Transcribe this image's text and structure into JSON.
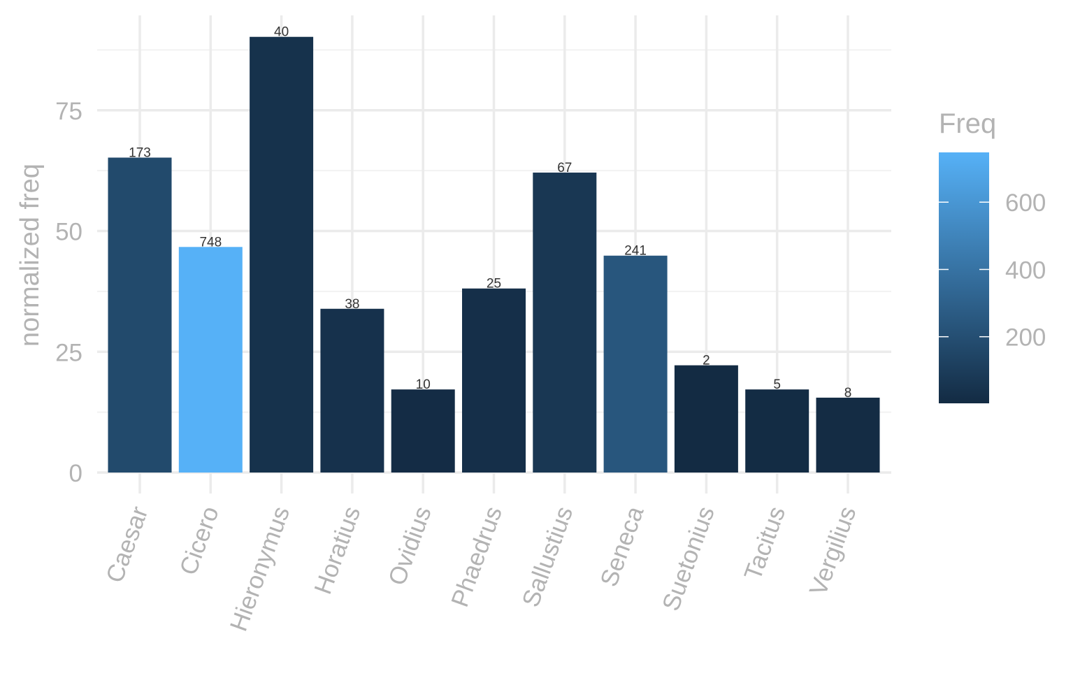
{
  "chart_data": {
    "type": "bar",
    "title": "",
    "xlabel": "",
    "ylabel": "normalized freq",
    "ylim": [
      0,
      90
    ],
    "yticks": [
      0,
      25,
      50,
      75
    ],
    "grid": true,
    "legend_position": "right",
    "categories": [
      "Caesar",
      "Cicero",
      "Hieronymus",
      "Horatius",
      "Ovidius",
      "Phaedrus",
      "Sallustius",
      "Seneca",
      "Suetonius",
      "Tacitus",
      "Vergilius"
    ],
    "values": [
      65.2,
      46.7,
      90.2,
      33.9,
      17.2,
      38.1,
      62.1,
      44.9,
      22.2,
      17.2,
      15.5
    ],
    "freq": [
      173,
      748,
      40,
      38,
      10,
      25,
      67,
      241,
      2,
      5,
      8
    ],
    "data_labels": [
      "173",
      "748",
      "40",
      "38",
      "10",
      "25",
      "67",
      "241",
      "2",
      "5",
      "8"
    ],
    "legend": {
      "title": "Freq",
      "min": 2,
      "max": 748,
      "ticks": [
        200,
        400,
        600
      ],
      "tick_labels": [
        "200",
        "400",
        "600"
      ],
      "color_low": "#132B43",
      "color_high": "#56B1F7"
    }
  }
}
